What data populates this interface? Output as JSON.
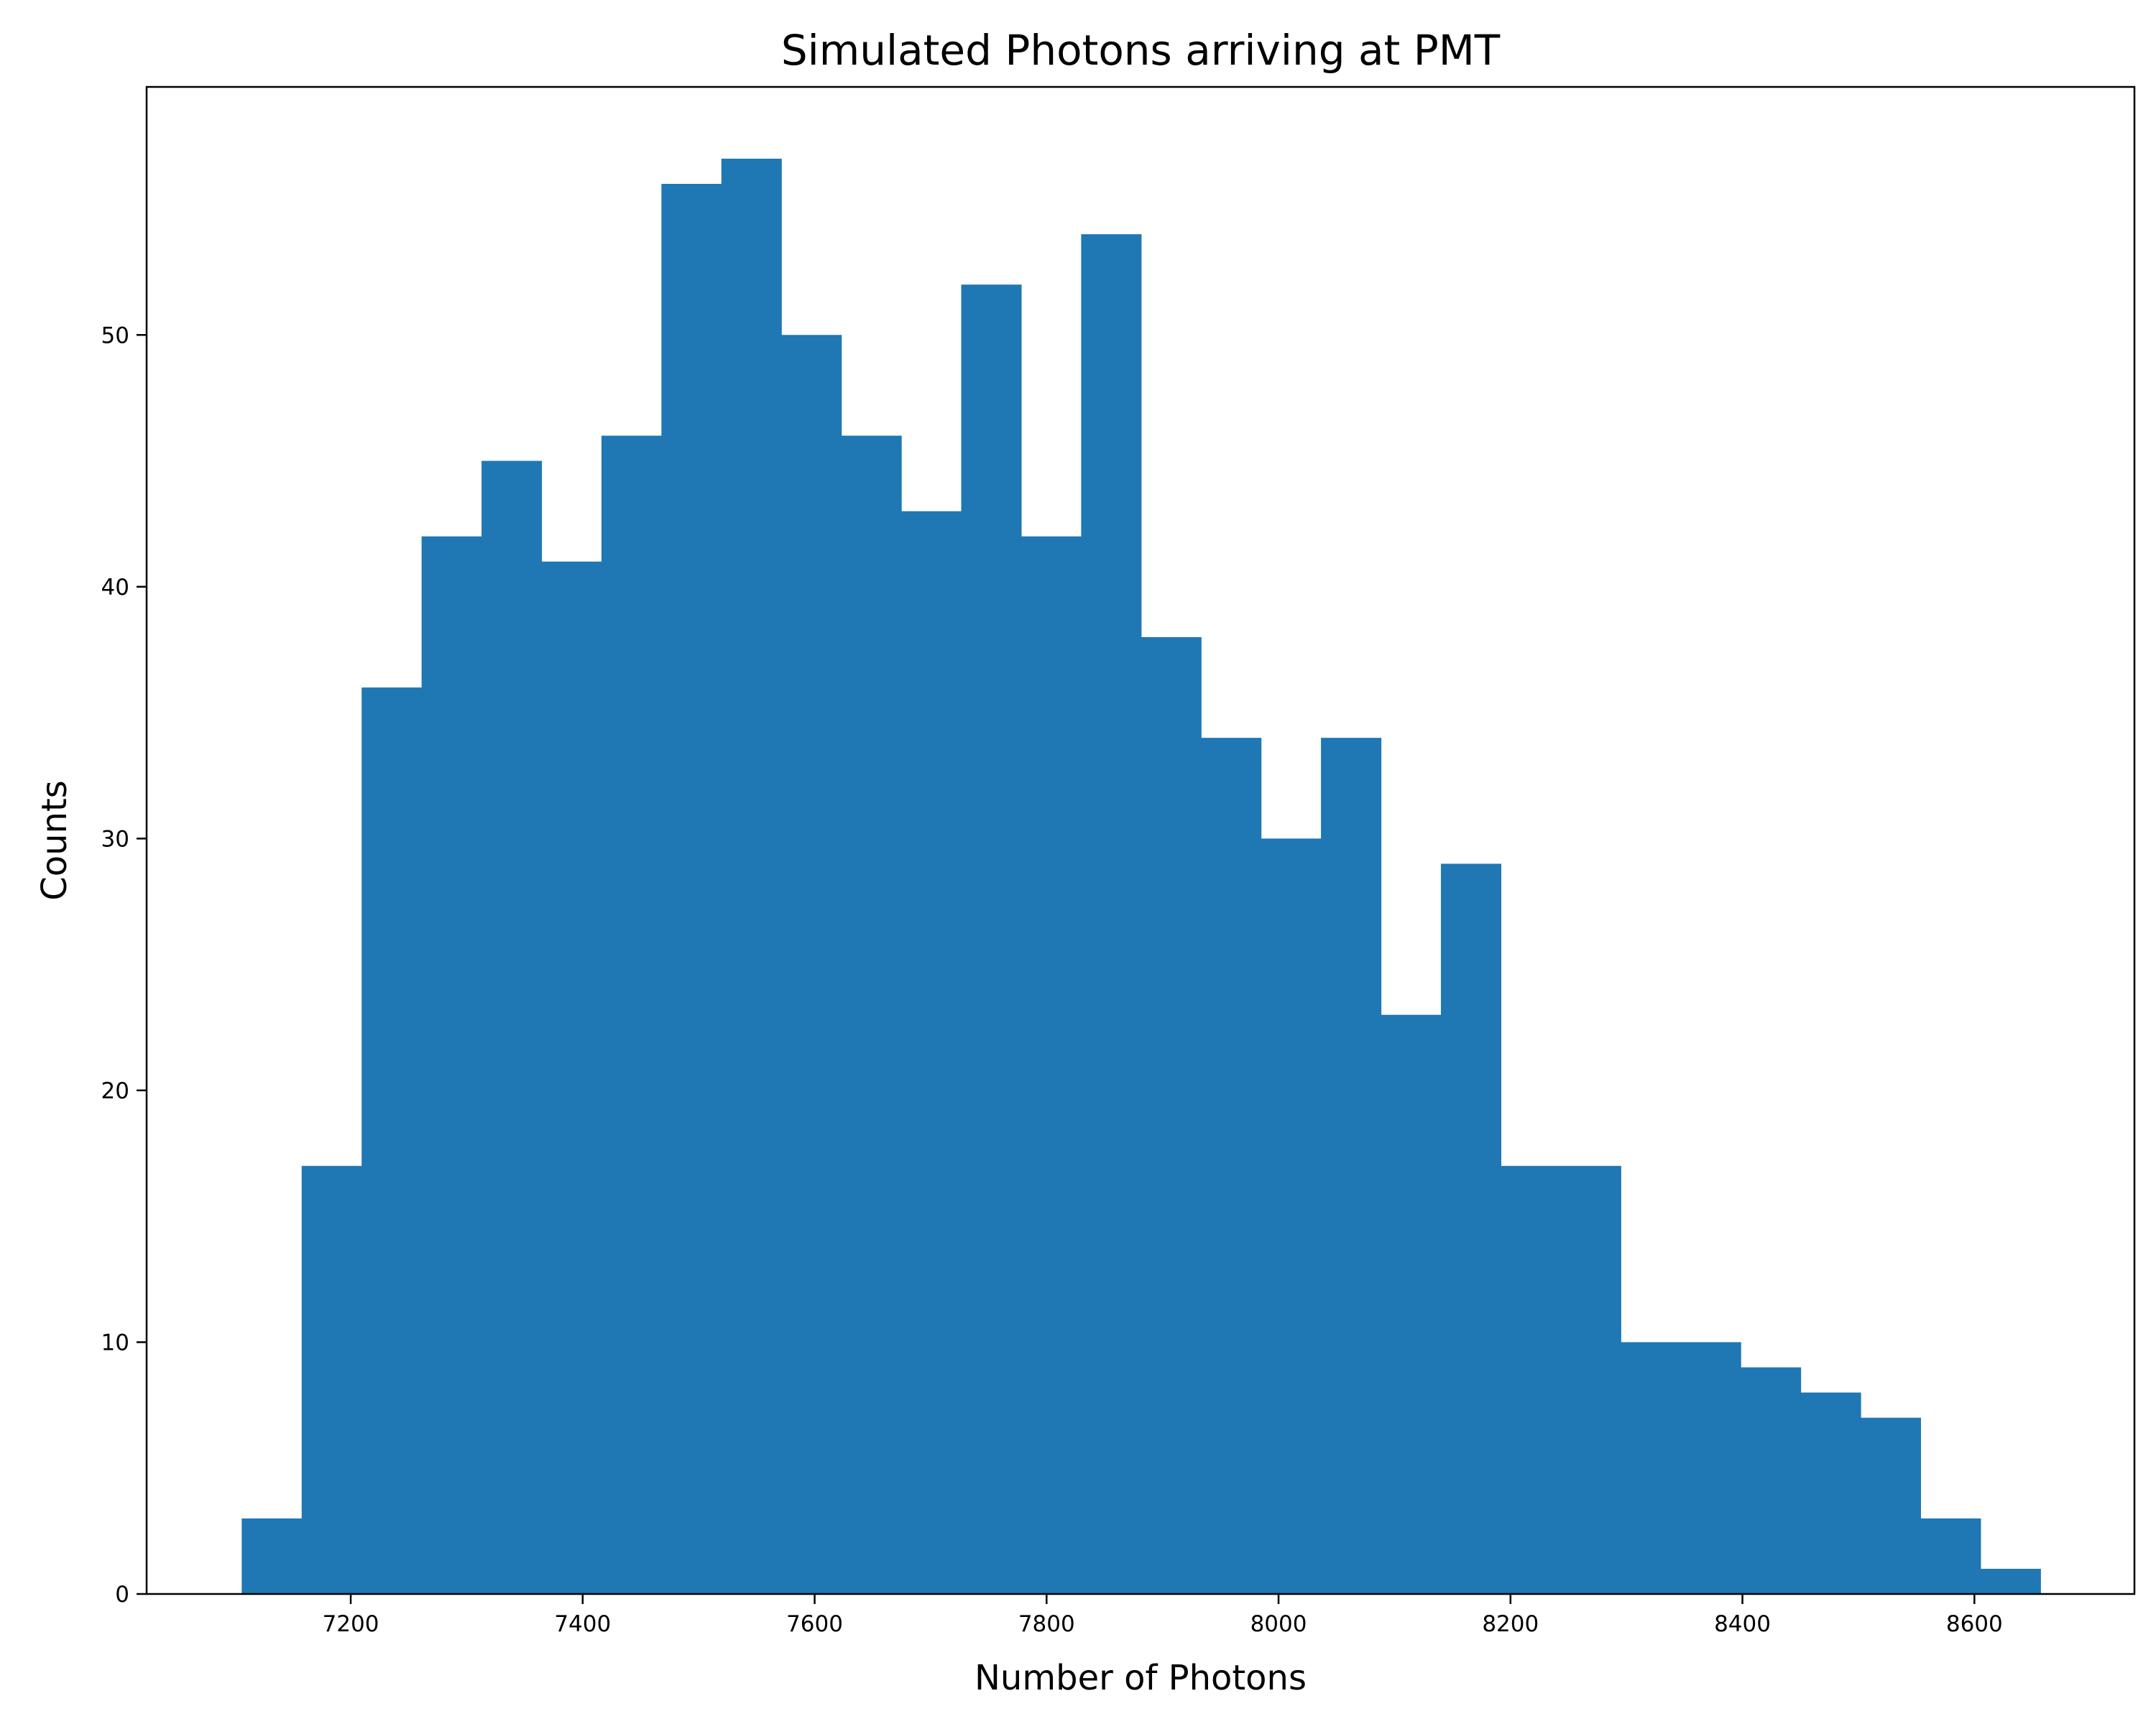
{
  "chart_data": {
    "type": "bar",
    "title": "Simulated Photons arriving at PMT",
    "xlabel": "Number of Photons",
    "ylabel": "Counts",
    "bin_start": 7106,
    "bin_width": 51.7,
    "values": [
      3,
      17,
      36,
      42,
      45,
      41,
      46,
      56,
      57,
      50,
      46,
      43,
      52,
      42,
      54,
      38,
      34,
      30,
      34,
      23,
      29,
      17,
      17,
      10,
      10,
      9,
      8,
      7,
      3,
      1
    ],
    "xlim": [
      7024,
      8738
    ],
    "ylim": [
      0,
      59.85
    ],
    "xticks": [
      7200,
      7400,
      7600,
      7800,
      8000,
      8200,
      8400,
      8600
    ],
    "yticks": [
      0,
      10,
      20,
      30,
      40,
      50
    ],
    "bar_color": "#1f77b4",
    "grid": false,
    "legend": "none"
  }
}
